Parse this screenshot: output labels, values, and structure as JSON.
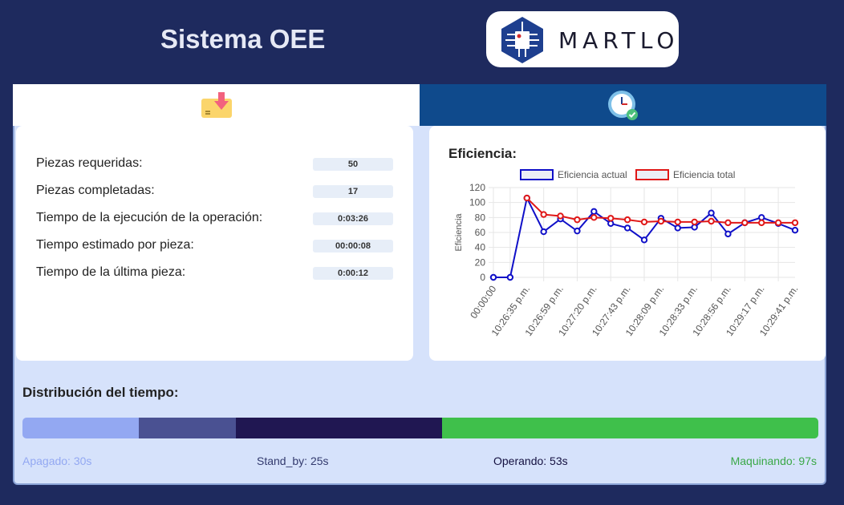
{
  "app": {
    "title": "Sistema OEE",
    "logo_text": "MARTLO"
  },
  "tabs": [
    {
      "icon": "package-download-icon"
    },
    {
      "icon": "clock-check-icon"
    }
  ],
  "stats": [
    {
      "label": "Piezas requeridas:",
      "value": "50"
    },
    {
      "label": "Piezas completadas:",
      "value": "17"
    },
    {
      "label": "Tiempo de la ejecución de la operación:",
      "value": "0:03:26"
    },
    {
      "label": "Tiempo estimado por pieza:",
      "value": "00:00:08"
    },
    {
      "label": "Tiempo de la última pieza:",
      "value": "0:00:12"
    }
  ],
  "chart_data": {
    "type": "line",
    "title": "Eficiencia:",
    "ylabel": "Eficiencia",
    "ylim": [
      0,
      120
    ],
    "yticks": [
      0,
      20,
      40,
      60,
      80,
      100,
      120
    ],
    "x_tick_labels": [
      "00:00:00",
      "10:26:35 p.m.",
      "10:26:59 p.m.",
      "10:27:20 p.m.",
      "10:27:43 p.m.",
      "10:28:09 p.m.",
      "10:28:33 p.m.",
      "10:28:56 p.m.",
      "10:29:17 p.m.",
      "10:29:41 p.m."
    ],
    "grid": true,
    "legend_position": "top",
    "series": [
      {
        "name": "Eficiencia actual",
        "color": "#1010c8",
        "values": [
          0,
          0,
          106,
          61,
          78,
          62,
          88,
          72,
          66,
          50,
          79,
          66,
          67,
          86,
          58,
          73,
          80,
          72,
          63
        ]
      },
      {
        "name": "Eficiencia total",
        "color": "#e01818",
        "values": [
          null,
          null,
          106,
          84,
          82,
          77,
          80,
          79,
          77,
          74,
          75,
          74,
          74,
          75,
          73,
          73,
          73,
          73,
          73
        ]
      }
    ]
  },
  "distribution": {
    "title": "Distribución del tiempo:",
    "segments": [
      {
        "label": "Apagado: 30s",
        "seconds": 30,
        "color": "#93a8f2",
        "text_color": "#93a8f2"
      },
      {
        "label": "Stand_by: 25s",
        "seconds": 25,
        "color": "#4a5192",
        "text_color": "#333a6e"
      },
      {
        "label": "Operando: 53s",
        "seconds": 53,
        "color": "#201752",
        "text_color": "#141040"
      },
      {
        "label": "Maquinando: 97s",
        "seconds": 97,
        "color": "#3fc04b",
        "text_color": "#3aa847"
      }
    ]
  }
}
